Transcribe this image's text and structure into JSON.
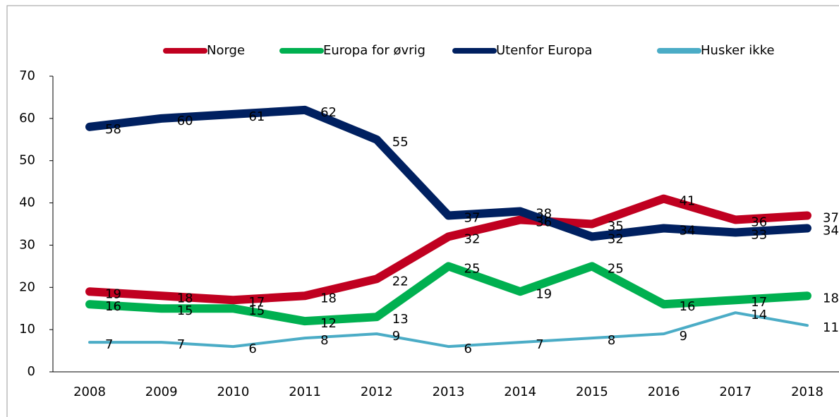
{
  "chart_data": {
    "type": "line",
    "categories": [
      "2008",
      "2009",
      "2010",
      "2011",
      "2012",
      "2013",
      "2014",
      "2015",
      "2016",
      "2017",
      "2018"
    ],
    "series": [
      {
        "name": "Norge",
        "color": "#c00020",
        "values": [
          19,
          18,
          17,
          18,
          22,
          32,
          36,
          35,
          41,
          36,
          37
        ]
      },
      {
        "name": "Europa for øvrig",
        "color": "#00b050",
        "values": [
          16,
          15,
          15,
          12,
          13,
          25,
          19,
          25,
          16,
          17,
          18
        ]
      },
      {
        "name": "Utenfor Europa",
        "color": "#002060",
        "values": [
          58,
          60,
          61,
          62,
          55,
          37,
          38,
          32,
          34,
          33,
          34
        ]
      },
      {
        "name": "Husker ikke",
        "color": "#4bacc6",
        "values": [
          7,
          7,
          6,
          8,
          9,
          6,
          7,
          8,
          9,
          14,
          11
        ]
      }
    ],
    "ylim": [
      0,
      70
    ],
    "yticks": [
      0,
      10,
      20,
      30,
      40,
      50,
      60,
      70
    ],
    "grid": false,
    "legend": "top"
  }
}
